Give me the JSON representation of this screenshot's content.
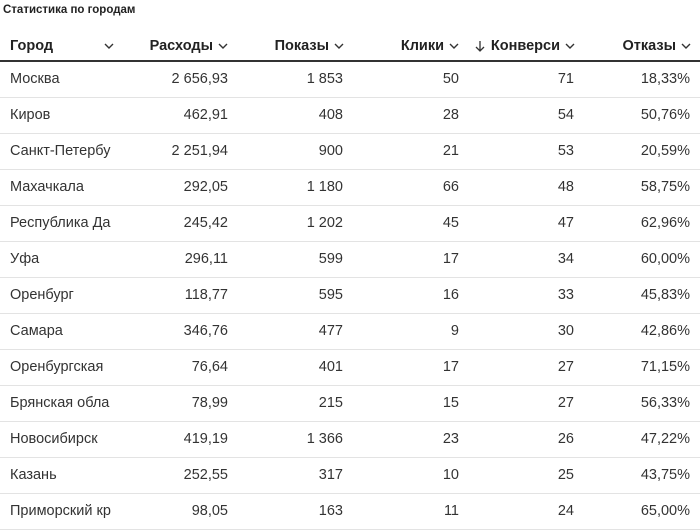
{
  "title": "Статистика по городам",
  "table": {
    "headers": [
      "Город",
      "Расходы",
      "Показы",
      "Клики",
      "Конверси",
      "Отказы"
    ],
    "rows": [
      [
        "Москва",
        "2 656,93",
        "1 853",
        "50",
        "71",
        "18,33%"
      ],
      [
        "Киров",
        "462,91",
        "408",
        "28",
        "54",
        "50,76%"
      ],
      [
        "Санкт-Петербу",
        "2 251,94",
        "900",
        "21",
        "53",
        "20,59%"
      ],
      [
        "Махачкала",
        "292,05",
        "1 180",
        "66",
        "48",
        "58,75%"
      ],
      [
        "Республика Да",
        "245,42",
        "1 202",
        "45",
        "47",
        "62,96%"
      ],
      [
        "Уфа",
        "296,11",
        "599",
        "17",
        "34",
        "60,00%"
      ],
      [
        "Оренбург",
        "118,77",
        "595",
        "16",
        "33",
        "45,83%"
      ],
      [
        "Самара",
        "346,76",
        "477",
        "9",
        "30",
        "42,86%"
      ],
      [
        "Оренбургская",
        "76,64",
        "401",
        "17",
        "27",
        "71,15%"
      ],
      [
        "Брянская обла",
        "78,99",
        "215",
        "15",
        "27",
        "56,33%"
      ],
      [
        "Новосибирск",
        "419,19",
        "1 366",
        "23",
        "26",
        "47,22%"
      ],
      [
        "Казань",
        "252,55",
        "317",
        "10",
        "25",
        "43,75%"
      ],
      [
        "Приморский кр",
        "98,05",
        "163",
        "11",
        "24",
        "65,00%"
      ]
    ]
  }
}
